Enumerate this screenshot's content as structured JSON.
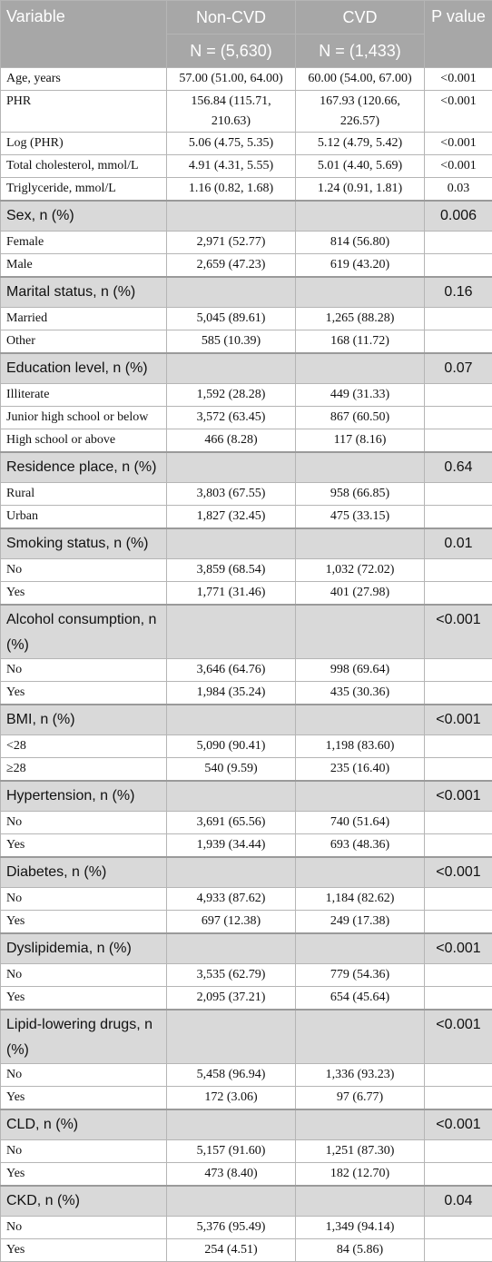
{
  "header": {
    "variable": "Variable",
    "non_cvd": "Non-CVD",
    "cvd": "CVD",
    "p_value": "P value",
    "non_cvd_n": "N = (5,630)",
    "cvd_n": "N = (1,433)"
  },
  "continuous": [
    [
      "Age, years",
      "57.00 (51.00, 64.00)",
      "60.00 (54.00, 67.00)",
      "<0.001"
    ],
    [
      "PHR",
      "156.84 (115.71, 210.63)",
      "167.93 (120.66, 226.57)",
      "<0.001"
    ],
    [
      "Log (PHR)",
      "5.06 (4.75, 5.35)",
      "5.12 (4.79, 5.42)",
      "<0.001"
    ],
    [
      "Total cholesterol, mmol/L",
      "4.91 (4.31, 5.55)",
      "5.01 (4.40, 5.69)",
      "<0.001"
    ],
    [
      "Triglyceride, mmol/L",
      "1.16 (0.82, 1.68)",
      "1.24 (0.91, 1.81)",
      "0.03"
    ]
  ],
  "sections": [
    {
      "label": "Sex, n (%)",
      "p": "0.006",
      "rows": [
        [
          "Female",
          "2,971 (52.77)",
          "814 (56.80)"
        ],
        [
          "Male",
          "2,659 (47.23)",
          "619 (43.20)"
        ]
      ]
    },
    {
      "label": "Marital status, n (%)",
      "p": "0.16",
      "rows": [
        [
          "Married",
          "5,045 (89.61)",
          "1,265 (88.28)"
        ],
        [
          "Other",
          "585 (10.39)",
          "168 (11.72)"
        ]
      ]
    },
    {
      "label": "Education level, n (%)",
      "p": "0.07",
      "rows": [
        [
          "Illiterate",
          "1,592 (28.28)",
          "449 (31.33)"
        ],
        [
          "Junior high school or below",
          "3,572 (63.45)",
          "867 (60.50)"
        ],
        [
          "High school or above",
          "466 (8.28)",
          "117 (8.16)"
        ]
      ]
    },
    {
      "label": "Residence place, n (%)",
      "p": "0.64",
      "rows": [
        [
          "Rural",
          "3,803 (67.55)",
          "958 (66.85)"
        ],
        [
          "Urban",
          "1,827 (32.45)",
          "475 (33.15)"
        ]
      ]
    },
    {
      "label": "Smoking status, n (%)",
      "p": "0.01",
      "rows": [
        [
          "No",
          "3,859 (68.54)",
          "1,032 (72.02)"
        ],
        [
          "Yes",
          "1,771 (31.46)",
          "401 (27.98)"
        ]
      ]
    },
    {
      "label": "Alcohol consumption, n (%)",
      "p": "<0.001",
      "rows": [
        [
          "No",
          "3,646 (64.76)",
          "998 (69.64)"
        ],
        [
          "Yes",
          "1,984 (35.24)",
          "435 (30.36)"
        ]
      ]
    },
    {
      "label": "BMI, n (%)",
      "p": "<0.001",
      "rows": [
        [
          "<28",
          "5,090 (90.41)",
          "1,198 (83.60)"
        ],
        [
          "≥28",
          "540 (9.59)",
          "235 (16.40)"
        ]
      ]
    },
    {
      "label": "Hypertension, n (%)",
      "p": "<0.001",
      "rows": [
        [
          "No",
          "3,691 (65.56)",
          "740 (51.64)"
        ],
        [
          "Yes",
          "1,939 (34.44)",
          "693 (48.36)"
        ]
      ]
    },
    {
      "label": "Diabetes, n (%)",
      "p": "<0.001",
      "rows": [
        [
          "No",
          "4,933 (87.62)",
          "1,184 (82.62)"
        ],
        [
          "Yes",
          "697 (12.38)",
          "249 (17.38)"
        ]
      ]
    },
    {
      "label": "Dyslipidemia, n (%)",
      "p": "<0.001",
      "rows": [
        [
          "No",
          "3,535 (62.79)",
          "779 (54.36)"
        ],
        [
          "Yes",
          "2,095 (37.21)",
          "654 (45.64)"
        ]
      ]
    },
    {
      "label": "Lipid-lowering drugs, n (%)",
      "p": "<0.001",
      "rows": [
        [
          "No",
          "5,458 (96.94)",
          "1,336 (93.23)"
        ],
        [
          "Yes",
          "172 (3.06)",
          "97 (6.77)"
        ]
      ]
    },
    {
      "label": "CLD, n (%)",
      "p": "<0.001",
      "rows": [
        [
          "No",
          "5,157 (91.60)",
          "1,251 (87.30)"
        ],
        [
          "Yes",
          "473 (8.40)",
          "182 (12.70)"
        ]
      ]
    },
    {
      "label": "CKD, n (%)",
      "p": "0.04",
      "rows": [
        [
          "No",
          "5,376 (95.49)",
          "1,349 (94.14)"
        ],
        [
          "Yes",
          "254 (4.51)",
          "84 (5.86)"
        ]
      ]
    }
  ]
}
